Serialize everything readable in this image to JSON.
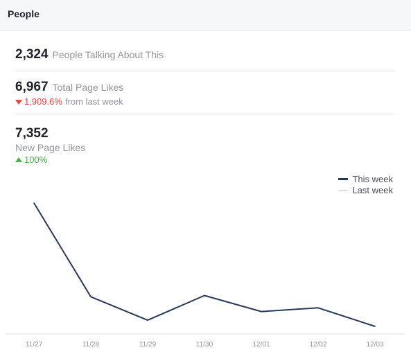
{
  "header": {
    "title": "People"
  },
  "stats": {
    "talking": {
      "value": "2,324",
      "label": "People Talking About This"
    },
    "total_likes": {
      "value": "6,967",
      "label": "Total Page Likes",
      "change": "1,909.6%",
      "change_suffix": "from last week",
      "direction": "down"
    },
    "new_likes": {
      "value": "7,352",
      "label": "New Page Likes",
      "change": "100%",
      "direction": "up"
    }
  },
  "legend": {
    "this_week": "This week",
    "last_week": "Last week"
  },
  "colors": {
    "this_week": "#263959",
    "last_week": "#bec3c9",
    "negative": "#e9473d",
    "positive": "#4cae4c"
  },
  "chart_data": {
    "type": "line",
    "categories": [
      "11/27",
      "11/28",
      "11/29",
      "11/30",
      "12/01",
      "12/02",
      "12/03"
    ],
    "series": [
      {
        "name": "This week",
        "values": [
          100,
          24,
          5,
          25,
          12,
          15,
          0
        ]
      }
    ],
    "ylim": [
      0,
      100
    ],
    "grid": false,
    "legend_position": "top-right"
  }
}
